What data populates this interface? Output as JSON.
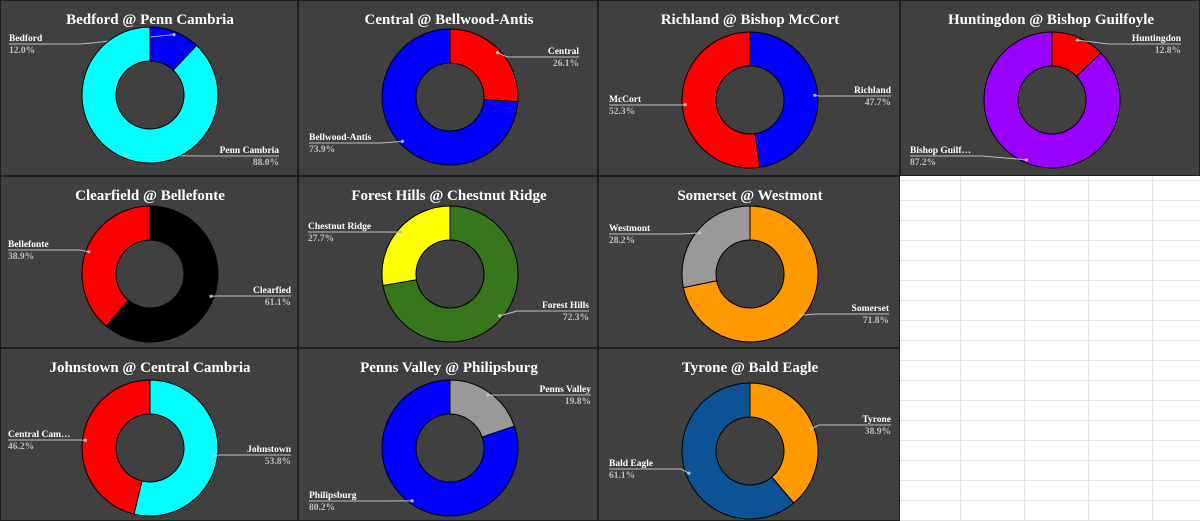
{
  "chart_data": [
    {
      "type": "pie",
      "title": "Bedford @ Penn Cambria",
      "slices": [
        {
          "label": "Bedford",
          "percent_text": "12.0%",
          "value": 12.0,
          "color": "#0000ff"
        },
        {
          "label": "Penn Cambria",
          "percent_text": "88.0%",
          "value": 88.0,
          "color": "#00ffff"
        }
      ]
    },
    {
      "type": "pie",
      "title": "Central @ Bellwood-Antis",
      "slices": [
        {
          "label": "Central",
          "percent_text": "26.1%",
          "value": 26.1,
          "color": "#ff0000"
        },
        {
          "label": "Bellwood-Antis",
          "percent_text": "73.9%",
          "value": 73.9,
          "color": "#0000ff"
        }
      ]
    },
    {
      "type": "pie",
      "title": "Richland @ Bishop McCort",
      "slices": [
        {
          "label": "Richland",
          "percent_text": "47.7%",
          "value": 47.7,
          "color": "#0000ff"
        },
        {
          "label": "McCort",
          "percent_text": "52.3%",
          "value": 52.3,
          "color": "#ff0000"
        }
      ]
    },
    {
      "type": "pie",
      "title": "Huntingdon @ Bishop Guilfoyle",
      "slices": [
        {
          "label": "Huntingdon",
          "percent_text": "12.8%",
          "value": 12.8,
          "color": "#ff0000"
        },
        {
          "label": "Bishop Guilf…",
          "percent_text": "87.2%",
          "value": 87.2,
          "color": "#9900ff"
        }
      ]
    },
    {
      "type": "pie",
      "title": "Clearfield @ Bellefonte",
      "slices": [
        {
          "label": "Clearfied",
          "percent_text": "61.1%",
          "value": 61.1,
          "color": "#000000"
        },
        {
          "label": "Bellefonte",
          "percent_text": "38.9%",
          "value": 38.9,
          "color": "#ff0000"
        }
      ]
    },
    {
      "type": "pie",
      "title": "Forest Hills @ Chestnut Ridge",
      "slices": [
        {
          "label": "Forest Hills",
          "percent_text": "72.3%",
          "value": 72.3,
          "color": "#38761d"
        },
        {
          "label": "Chestnut Ridge",
          "percent_text": "27.7%",
          "value": 27.7,
          "color": "#ffff00"
        }
      ]
    },
    {
      "type": "pie",
      "title": "Somerset @ Westmont",
      "slices": [
        {
          "label": "Somerset",
          "percent_text": "71.8%",
          "value": 71.8,
          "color": "#ff9900"
        },
        {
          "label": "Westmont",
          "percent_text": "28.2%",
          "value": 28.2,
          "color": "#999999"
        }
      ]
    },
    {
      "type": "pie",
      "title": "Johnstown @ Central Cambria",
      "slices": [
        {
          "label": "Johnstown",
          "percent_text": "53.8%",
          "value": 53.8,
          "color": "#00ffff"
        },
        {
          "label": "Central Cam…",
          "percent_text": "46.2%",
          "value": 46.2,
          "color": "#ff0000"
        }
      ]
    },
    {
      "type": "pie",
      "title": "Penns Valley @ Philipsburg",
      "slices": [
        {
          "label": "Penns Valley",
          "percent_text": "19.8%",
          "value": 19.8,
          "color": "#999999"
        },
        {
          "label": "Philipsburg",
          "percent_text": "80.2%",
          "value": 80.2,
          "color": "#0000ff"
        }
      ]
    },
    {
      "type": "pie",
      "title": "Tyrone @ Bald Eagle",
      "slices": [
        {
          "label": "Tyrone",
          "percent_text": "38.9%",
          "value": 38.9,
          "color": "#ff9900"
        },
        {
          "label": "Bald Eagle",
          "percent_text": "61.1%",
          "value": 61.1,
          "color": "#0b5394"
        }
      ]
    }
  ],
  "colors": {
    "panel_background": "#404040",
    "title_text": "#ffffff",
    "percent_text": "#bfbfbf",
    "leader_line": "#bfbfbf"
  }
}
